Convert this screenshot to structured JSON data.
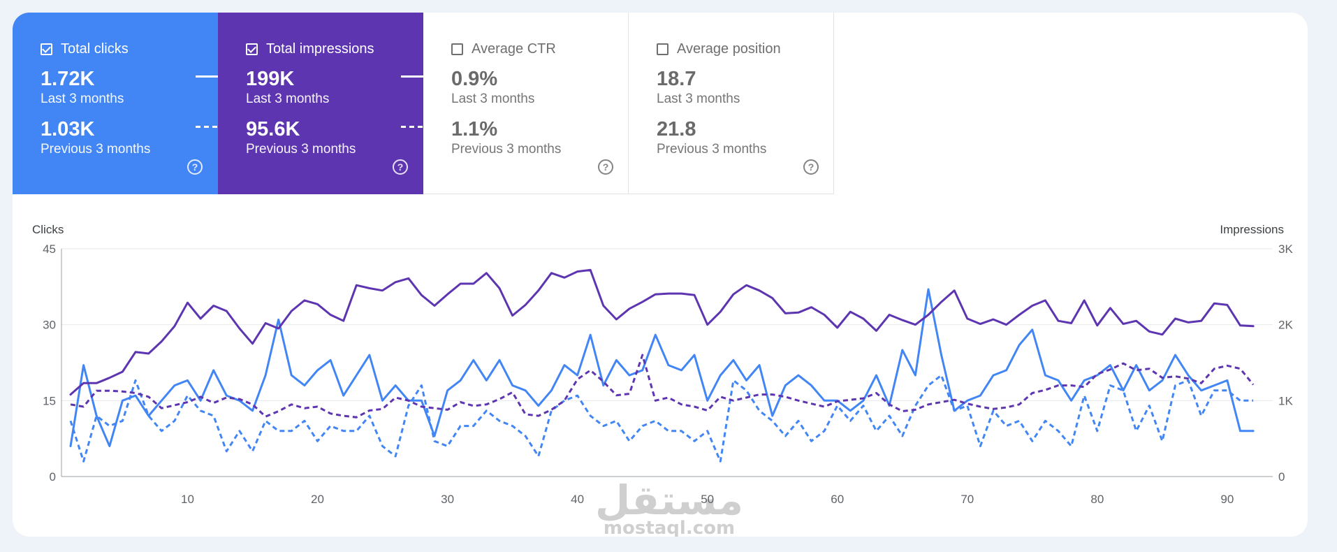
{
  "cards": [
    {
      "title": "Total clicks",
      "checked": true,
      "current": "1.72K",
      "current_label": "Last 3 months",
      "previous": "1.03K",
      "previous_label": "Previous 3 months",
      "help": "?"
    },
    {
      "title": "Total impressions",
      "checked": true,
      "current": "199K",
      "current_label": "Last 3 months",
      "previous": "95.6K",
      "previous_label": "Previous 3 months",
      "help": "?"
    },
    {
      "title": "Average CTR",
      "checked": false,
      "current": "0.9%",
      "current_label": "Last 3 months",
      "previous": "1.1%",
      "previous_label": "Previous 3 months",
      "help": "?"
    },
    {
      "title": "Average position",
      "checked": false,
      "current": "18.7",
      "current_label": "Last 3 months",
      "previous": "21.8",
      "previous_label": "Previous 3 months",
      "help": "?"
    }
  ],
  "colors": {
    "clicks": "#4285f4",
    "impressions": "#5e35b1",
    "grid": "#e8eaed"
  },
  "watermark": {
    "arabic": "مستقل",
    "latin": "mostaql.com"
  },
  "chart_data": {
    "type": "line",
    "ylabel": "Clicks",
    "y2label": "Impressions",
    "ylim": [
      0,
      45
    ],
    "y2lim": [
      0,
      3000
    ],
    "yticks": [
      "0",
      "15",
      "30",
      "45"
    ],
    "y2ticks": [
      "0",
      "1K",
      "2K",
      "3K"
    ],
    "xticks": [
      10,
      20,
      30,
      40,
      50,
      60,
      70,
      80,
      90
    ],
    "x": [
      1,
      2,
      3,
      4,
      5,
      6,
      7,
      8,
      9,
      10,
      11,
      12,
      13,
      14,
      15,
      16,
      17,
      18,
      19,
      20,
      21,
      22,
      23,
      24,
      25,
      26,
      27,
      28,
      29,
      30,
      31,
      32,
      33,
      34,
      35,
      36,
      37,
      38,
      39,
      40,
      41,
      42,
      43,
      44,
      45,
      46,
      47,
      48,
      49,
      50,
      51,
      52,
      53,
      54,
      55,
      56,
      57,
      58,
      59,
      60,
      61,
      62,
      63,
      64,
      65,
      66,
      67,
      68,
      69,
      70,
      71,
      72,
      73,
      74,
      75,
      76,
      77,
      78,
      79,
      80,
      81,
      82,
      83,
      84,
      85,
      86,
      87,
      88,
      89,
      90,
      91,
      92
    ],
    "grid": true,
    "series": [
      {
        "axis": "left",
        "style": "solid",
        "color": "#4285f4",
        "values": [
          6,
          22,
          12,
          6,
          15,
          16,
          12,
          15,
          18,
          19,
          15,
          21,
          16,
          15,
          13,
          20,
          31,
          20,
          18,
          21,
          23,
          16,
          20,
          24,
          15,
          18,
          15,
          15,
          8,
          17,
          19,
          23,
          19,
          23,
          18,
          17,
          14,
          17,
          22,
          20,
          28,
          18,
          23,
          20,
          21,
          28,
          22,
          21,
          24,
          15,
          20,
          23,
          19,
          22,
          12,
          18,
          20,
          18,
          15,
          15,
          13,
          15,
          20,
          14,
          25,
          20,
          37,
          24,
          13,
          15,
          16,
          20,
          21,
          26,
          29,
          20,
          19,
          15,
          19,
          20,
          22,
          17,
          22,
          17,
          19,
          24,
          20,
          17,
          18,
          19,
          9,
          9
        ]
      },
      {
        "axis": "left",
        "style": "dashed",
        "color": "#4285f4",
        "values": [
          11,
          3,
          12,
          10,
          11,
          19,
          12,
          9,
          11,
          16,
          13,
          12,
          5,
          9,
          5,
          11,
          9,
          9,
          11,
          7,
          10,
          9,
          9,
          12,
          6,
          4,
          14,
          18,
          7,
          6,
          10,
          10,
          13,
          11,
          10,
          8,
          4,
          13,
          15,
          16,
          12,
          10,
          11,
          7,
          10,
          11,
          9,
          9,
          7,
          9,
          3,
          19,
          17,
          13,
          11,
          8,
          11,
          7,
          9,
          14,
          11,
          14,
          9,
          12,
          8,
          14,
          18,
          20,
          13,
          14,
          6,
          13,
          10,
          11,
          7,
          11,
          9,
          6,
          16,
          9,
          18,
          17,
          9,
          14,
          7,
          18,
          19,
          12,
          17,
          17,
          15,
          15
        ]
      },
      {
        "axis": "right",
        "style": "solid",
        "color": "#5e35b1",
        "values": [
          1080,
          1230,
          1230,
          1300,
          1380,
          1640,
          1620,
          1780,
          1980,
          2290,
          2080,
          2250,
          2180,
          1950,
          1750,
          2020,
          1950,
          2180,
          2320,
          2270,
          2130,
          2050,
          2520,
          2480,
          2450,
          2560,
          2610,
          2390,
          2250,
          2400,
          2540,
          2540,
          2680,
          2480,
          2120,
          2260,
          2450,
          2680,
          2620,
          2700,
          2720,
          2250,
          2070,
          2210,
          2300,
          2400,
          2410,
          2410,
          2390,
          2000,
          2170,
          2400,
          2520,
          2450,
          2350,
          2150,
          2160,
          2230,
          2130,
          1960,
          2170,
          2080,
          1920,
          2130,
          2060,
          2000,
          2130,
          2300,
          2450,
          2080,
          2010,
          2070,
          2000,
          2130,
          2250,
          2320,
          2050,
          2020,
          2320,
          1990,
          2220,
          2010,
          2050,
          1910,
          1870,
          2080,
          2030,
          2050,
          2280,
          2260,
          1990,
          1980
        ]
      },
      {
        "axis": "right",
        "style": "dashed",
        "color": "#5e35b1",
        "values": [
          950,
          920,
          1130,
          1130,
          1120,
          1100,
          1050,
          900,
          940,
          980,
          1050,
          970,
          1040,
          1020,
          950,
          790,
          860,
          950,
          900,
          920,
          830,
          800,
          780,
          870,
          890,
          1040,
          1000,
          920,
          900,
          880,
          980,
          930,
          950,
          1020,
          1110,
          820,
          800,
          880,
          1000,
          1280,
          1400,
          1250,
          1070,
          1090,
          1600,
          1000,
          1040,
          950,
          920,
          870,
          1050,
          1000,
          1040,
          1080,
          1080,
          1050,
          1000,
          960,
          920,
          990,
          1010,
          1030,
          1100,
          950,
          860,
          880,
          950,
          980,
          1010,
          960,
          920,
          890,
          910,
          950,
          1100,
          1140,
          1200,
          1200,
          1180,
          1350,
          1410,
          1490,
          1400,
          1420,
          1300,
          1320,
          1290,
          1230,
          1420,
          1460,
          1420,
          1210
        ]
      }
    ]
  }
}
